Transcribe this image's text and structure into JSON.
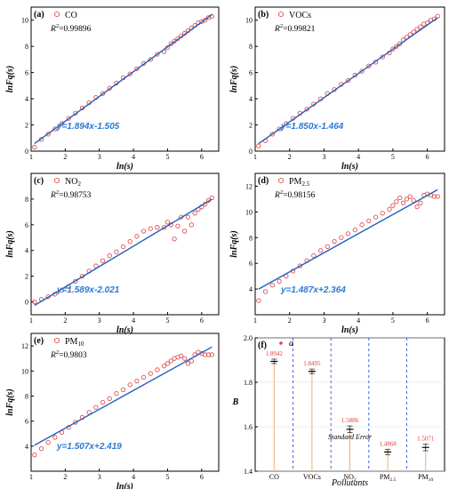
{
  "chart_data": [
    {
      "type": "scatter",
      "tag": "(a)",
      "legend": "CO",
      "r2": "0.99896",
      "fit_label": "y=1.894x-1.505",
      "fit": {
        "k": 1.894,
        "b": -1.505
      },
      "xlabel": "ln(s)",
      "ylabel": "lnFq(s)",
      "xlim": [
        1,
        6.5
      ],
      "ylim": [
        0,
        11
      ],
      "xticks": [
        "1",
        "2",
        "3",
        "4",
        "5",
        "6"
      ],
      "yticks": [
        "0",
        "2",
        "4",
        "6",
        "8",
        "10"
      ],
      "x": [
        1.1,
        1.3,
        1.5,
        1.7,
        1.9,
        2.1,
        2.3,
        2.5,
        2.7,
        2.9,
        3.1,
        3.3,
        3.5,
        3.7,
        3.9,
        4.1,
        4.3,
        4.5,
        4.7,
        4.9,
        5.0,
        5.1,
        5.2,
        5.3,
        5.4,
        5.5,
        5.6,
        5.7,
        5.8,
        5.9,
        6.0,
        6.1,
        6.2,
        6.3
      ],
      "y": [
        0.3,
        0.9,
        1.3,
        1.7,
        2.1,
        2.5,
        2.9,
        3.3,
        3.7,
        4.1,
        4.4,
        4.8,
        5.2,
        5.6,
        5.9,
        6.3,
        6.7,
        7.0,
        7.4,
        7.6,
        7.9,
        8.2,
        8.4,
        8.6,
        8.8,
        9.0,
        9.2,
        9.4,
        9.6,
        9.8,
        9.9,
        10.0,
        10.2,
        10.3
      ]
    },
    {
      "type": "scatter",
      "tag": "(b)",
      "legend": "VOCs",
      "r2": "0.99821",
      "fit_label": "y=1.850x-1.464",
      "fit": {
        "k": 1.85,
        "b": -1.464
      },
      "xlabel": "ln(s)",
      "ylabel": "lnFq(s)",
      "xlim": [
        1,
        6.5
      ],
      "ylim": [
        0,
        11
      ],
      "xticks": [
        "1",
        "2",
        "3",
        "4",
        "5",
        "6"
      ],
      "yticks": [
        "0",
        "2",
        "4",
        "6",
        "8",
        "10"
      ],
      "x": [
        1.1,
        1.3,
        1.5,
        1.7,
        1.9,
        2.1,
        2.3,
        2.5,
        2.7,
        2.9,
        3.1,
        3.3,
        3.5,
        3.7,
        3.9,
        4.1,
        4.3,
        4.5,
        4.7,
        4.9,
        5.0,
        5.1,
        5.2,
        5.3,
        5.4,
        5.5,
        5.6,
        5.7,
        5.8,
        5.9,
        6.0,
        6.1,
        6.2,
        6.3
      ],
      "y": [
        0.4,
        0.8,
        1.3,
        1.7,
        2.1,
        2.5,
        2.9,
        3.2,
        3.6,
        4.0,
        4.4,
        4.7,
        5.1,
        5.4,
        5.8,
        6.1,
        6.5,
        6.8,
        7.2,
        7.5,
        7.8,
        8.0,
        8.2,
        8.5,
        8.7,
        8.9,
        9.1,
        9.3,
        9.5,
        9.7,
        9.8,
        10.0,
        10.1,
        10.3
      ]
    },
    {
      "type": "scatter",
      "tag": "(c)",
      "legend": "NO",
      "legend_sub": "2",
      "r2": "0.98753",
      "fit_label": "y=1.589x-2.021",
      "fit": {
        "k": 1.589,
        "b": -2.021
      },
      "xlabel": "ln(s)",
      "ylabel": "lnFq(s)",
      "xlim": [
        1,
        6.5
      ],
      "ylim": [
        -1,
        10
      ],
      "xticks": [
        "1",
        "2",
        "3",
        "4",
        "5",
        "6"
      ],
      "yticks": [
        "0",
        "2",
        "4",
        "6",
        "8"
      ],
      "x": [
        1.1,
        1.3,
        1.5,
        1.7,
        1.9,
        2.1,
        2.3,
        2.5,
        2.7,
        2.9,
        3.1,
        3.3,
        3.5,
        3.7,
        3.9,
        4.1,
        4.3,
        4.5,
        4.7,
        4.9,
        5.0,
        5.1,
        5.2,
        5.3,
        5.4,
        5.5,
        5.6,
        5.7,
        5.8,
        5.9,
        6.0,
        6.1,
        6.2,
        6.3
      ],
      "y": [
        0.0,
        0.2,
        0.4,
        0.6,
        0.9,
        1.2,
        1.6,
        2.0,
        2.4,
        2.8,
        3.2,
        3.6,
        3.9,
        4.3,
        4.7,
        5.1,
        5.5,
        5.7,
        5.8,
        5.8,
        6.2,
        6.0,
        4.9,
        5.9,
        6.6,
        5.5,
        6.6,
        6.0,
        6.9,
        7.2,
        7.4,
        7.6,
        7.9,
        8.1
      ]
    },
    {
      "type": "scatter",
      "tag": "(d)",
      "legend": "PM",
      "legend_sub": "2.5",
      "r2": "0.98156",
      "fit_label": "y=1.487x+2.364",
      "fit": {
        "k": 1.487,
        "b": 2.364
      },
      "xlabel": "ln(s)",
      "ylabel": "lnFq(s)",
      "xlim": [
        1,
        6.5
      ],
      "ylim": [
        2,
        13
      ],
      "xticks": [
        "1",
        "2",
        "3",
        "4",
        "5",
        "6"
      ],
      "yticks": [
        "4",
        "6",
        "8",
        "10",
        "12"
      ],
      "x": [
        1.1,
        1.3,
        1.5,
        1.7,
        1.9,
        2.1,
        2.3,
        2.5,
        2.7,
        2.9,
        3.1,
        3.3,
        3.5,
        3.7,
        3.9,
        4.1,
        4.3,
        4.5,
        4.7,
        4.9,
        5.0,
        5.1,
        5.2,
        5.3,
        5.4,
        5.5,
        5.6,
        5.7,
        5.8,
        5.9,
        6.0,
        6.1,
        6.2,
        6.3
      ],
      "y": [
        3.1,
        3.8,
        4.3,
        4.6,
        5.0,
        5.4,
        5.8,
        6.2,
        6.6,
        7.0,
        7.3,
        7.7,
        8.0,
        8.3,
        8.6,
        9.0,
        9.3,
        9.6,
        9.9,
        10.2,
        10.5,
        10.8,
        11.1,
        10.7,
        11.0,
        11.2,
        10.9,
        10.4,
        10.7,
        11.3,
        11.4,
        11.3,
        11.2,
        11.2
      ]
    },
    {
      "type": "scatter",
      "tag": "(e)",
      "legend": "PM",
      "legend_sub": "10",
      "r2": "0.9803",
      "fit_label": "y=1.507x+2.419",
      "fit": {
        "k": 1.507,
        "b": 2.419
      },
      "xlabel": "ln(s)",
      "ylabel": "lnFq(s)",
      "xlim": [
        1,
        6.5
      ],
      "ylim": [
        2,
        13
      ],
      "xticks": [
        "1",
        "2",
        "3",
        "4",
        "5",
        "6"
      ],
      "yticks": [
        "4",
        "6",
        "8",
        "10",
        "12"
      ],
      "x": [
        1.1,
        1.3,
        1.5,
        1.7,
        1.9,
        2.1,
        2.3,
        2.5,
        2.7,
        2.9,
        3.1,
        3.3,
        3.5,
        3.7,
        3.9,
        4.1,
        4.3,
        4.5,
        4.7,
        4.9,
        5.0,
        5.1,
        5.2,
        5.3,
        5.4,
        5.5,
        5.6,
        5.7,
        5.8,
        5.9,
        6.0,
        6.1,
        6.2,
        6.3
      ],
      "y": [
        3.3,
        3.8,
        4.3,
        4.7,
        5.1,
        5.5,
        5.9,
        6.3,
        6.7,
        7.1,
        7.5,
        7.8,
        8.2,
        8.5,
        8.9,
        9.2,
        9.5,
        9.8,
        10.1,
        10.4,
        10.6,
        10.8,
        11.0,
        11.1,
        11.2,
        11.0,
        10.6,
        10.8,
        11.3,
        11.5,
        11.4,
        11.3,
        11.3,
        11.3
      ]
    },
    {
      "type": "bar",
      "tag": "(f)",
      "legend": "a",
      "xlabel": "Pollutants",
      "ylabel": "B",
      "ylim": [
        1.4,
        2.0
      ],
      "yticks": [
        "1.4",
        "1.6",
        "1.8",
        "2.0"
      ],
      "categories": [
        "CO",
        "VOCs",
        "NO",
        "PM",
        "PM"
      ],
      "category_subs": [
        "",
        "",
        "2",
        "2.5",
        "10"
      ],
      "values": [
        1.8942,
        1.8495,
        1.5886,
        1.4868,
        1.5071
      ],
      "value_labels": [
        "1.8942",
        "1.8495",
        "1.5886",
        "1.4868",
        "1.5071"
      ],
      "errors": [
        0.01,
        0.01,
        0.015,
        0.012,
        0.015
      ],
      "annotation": "Standard Error"
    }
  ]
}
